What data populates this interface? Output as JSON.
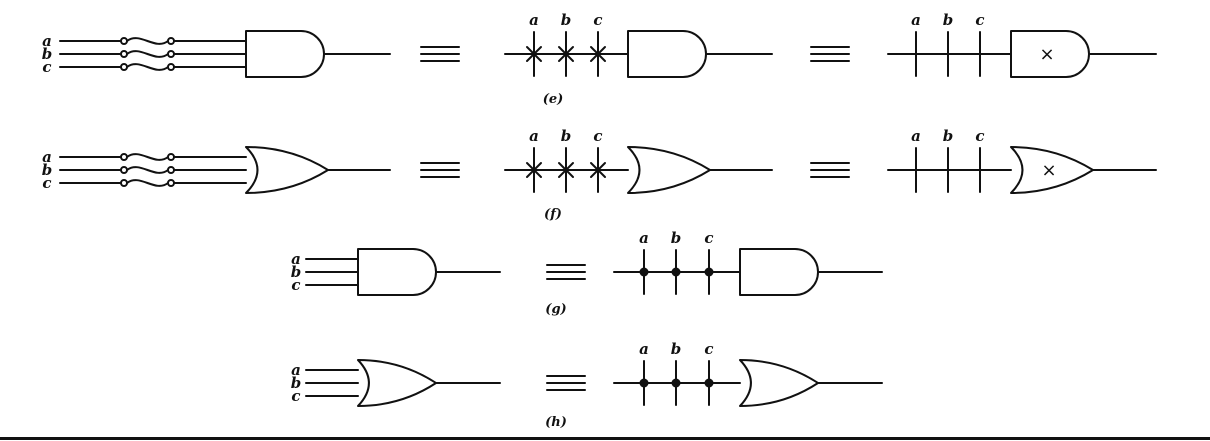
{
  "figure": {
    "equiv_symbol": "≡",
    "rows": [
      {
        "id": "e",
        "caption": "(e)",
        "gate": "and",
        "inputs": [
          "a",
          "b",
          "c"
        ],
        "programmable": true,
        "equivalent_1": {
          "inputs": [
            "a",
            "b",
            "c"
          ],
          "connection_marks": "x-cross"
        },
        "equivalent_2": {
          "inputs": [
            "a",
            "b",
            "c"
          ],
          "gate_mark": "×"
        }
      },
      {
        "id": "f",
        "caption": "(f)",
        "gate": "or",
        "inputs": [
          "a",
          "b",
          "c"
        ],
        "programmable": true,
        "equivalent_1": {
          "inputs": [
            "a",
            "b",
            "c"
          ],
          "connection_marks": "x-cross"
        },
        "equivalent_2": {
          "inputs": [
            "a",
            "b",
            "c"
          ],
          "gate_mark": "×"
        }
      },
      {
        "id": "g",
        "caption": "(g)",
        "gate": "and",
        "inputs": [
          "a",
          "b",
          "c"
        ],
        "programmable": false,
        "equivalent_1": {
          "inputs": [
            "a",
            "b",
            "c"
          ],
          "connection_marks": "dot"
        }
      },
      {
        "id": "h",
        "caption": "(h)",
        "gate": "or",
        "inputs": [
          "a",
          "b",
          "c"
        ],
        "programmable": false,
        "equivalent_1": {
          "inputs": [
            "a",
            "b",
            "c"
          ],
          "connection_marks": "dot"
        }
      }
    ]
  }
}
